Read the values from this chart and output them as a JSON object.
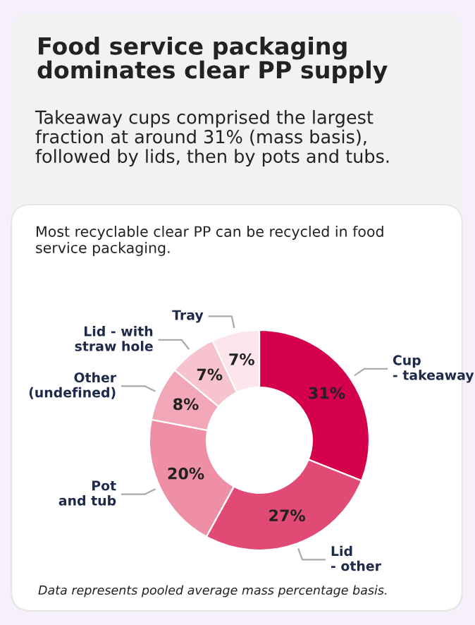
{
  "chart_data": {
    "type": "donut",
    "title": "Food service packaging\ndominates clear PP supply",
    "subtitle": "Takeaway cups comprised the largest\nfraction at around 31% (mass basis),\nfollowed by lids, then by pots and tubs.",
    "xlabel": "Most recyclable clear PP can be recycled in food\nservice packaging.",
    "annotations": [
      "Data represents pooled average mass percentage basis."
    ],
    "categories": [
      "Cup\n- takeaway",
      "Lid\n- other",
      "Pot\nand tub",
      "Other\n(undefined)",
      "Lid - with\nstraw hole",
      "Tray"
    ],
    "values": [
      31,
      27,
      20,
      8,
      7,
      7
    ],
    "value_labels": [
      "31%",
      "27%",
      "20%",
      "8%",
      "7%",
      "7%"
    ],
    "colors": [
      "#d4004c",
      "#e04a74",
      "#ee8fa5",
      "#f2a7b9",
      "#f6c3cf",
      "#fbe4ea"
    ]
  }
}
